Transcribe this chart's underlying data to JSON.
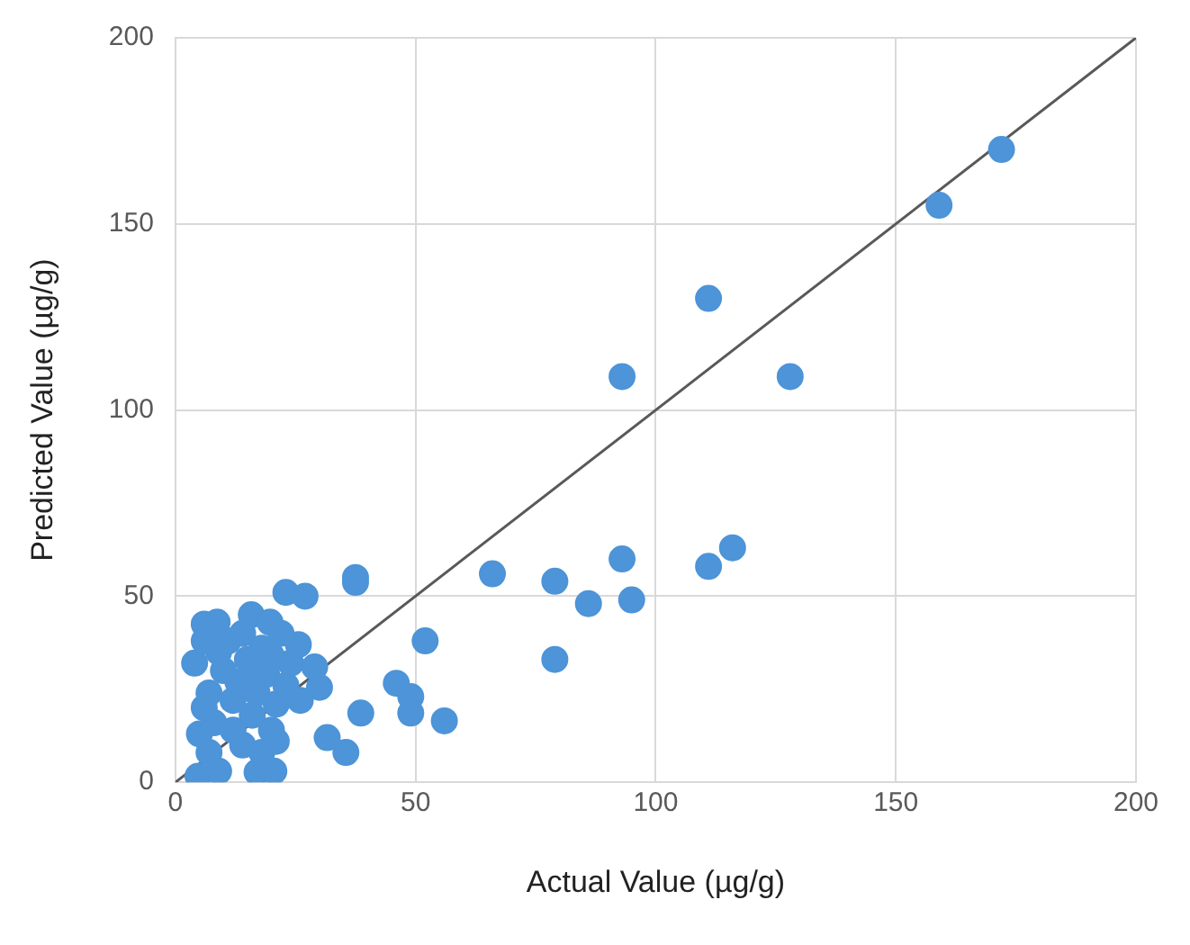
{
  "chart_data": {
    "type": "scatter",
    "xlabel": "Actual Value (µg/g)",
    "ylabel": "Predicted Value (µg/g)",
    "xlim": [
      0,
      200
    ],
    "ylim": [
      0,
      200
    ],
    "xticks": [
      0,
      50,
      100,
      150,
      200
    ],
    "yticks": [
      0,
      50,
      100,
      150,
      200
    ],
    "grid": true,
    "legend": false,
    "marker": "circle",
    "series": [
      {
        "color": "#4d94d8",
        "x": [
          172,
          159,
          111,
          93,
          128,
          66,
          79,
          86,
          93,
          95,
          79,
          111,
          116,
          52,
          56,
          49,
          49,
          46,
          37.5,
          37.5,
          38.6,
          35.5,
          31.6,
          23,
          27,
          29,
          30,
          25.6,
          4,
          6,
          8.7,
          15.8,
          19.7,
          4.7,
          9,
          17,
          20.5,
          5,
          6,
          7,
          8,
          9,
          10,
          11,
          12,
          13,
          14,
          15,
          16,
          17,
          18,
          19,
          20,
          21,
          22,
          23,
          24,
          14,
          18,
          7,
          12,
          16,
          20,
          6,
          21,
          26
        ],
        "values": [
          170,
          155,
          130,
          109,
          109,
          56,
          54,
          48,
          60,
          49,
          33,
          58,
          63,
          38,
          16.5,
          23,
          18.6,
          26.6,
          53.7,
          55,
          18.6,
          8,
          12,
          51,
          50,
          31,
          25.5,
          37,
          32,
          42.5,
          43,
          45,
          43,
          1.6,
          3,
          2.7,
          3,
          13,
          20,
          24,
          16,
          35,
          30,
          38,
          22,
          27,
          40,
          33,
          18,
          24,
          36,
          29,
          14,
          21,
          40,
          26,
          32,
          10,
          8,
          8,
          14,
          30,
          34,
          38,
          11,
          22
        ]
      },
      {
        "type": "line",
        "color": "#595959",
        "x": [
          0,
          200
        ],
        "values": [
          0,
          200
        ],
        "marker": "none",
        "line_style": "solid"
      }
    ]
  }
}
